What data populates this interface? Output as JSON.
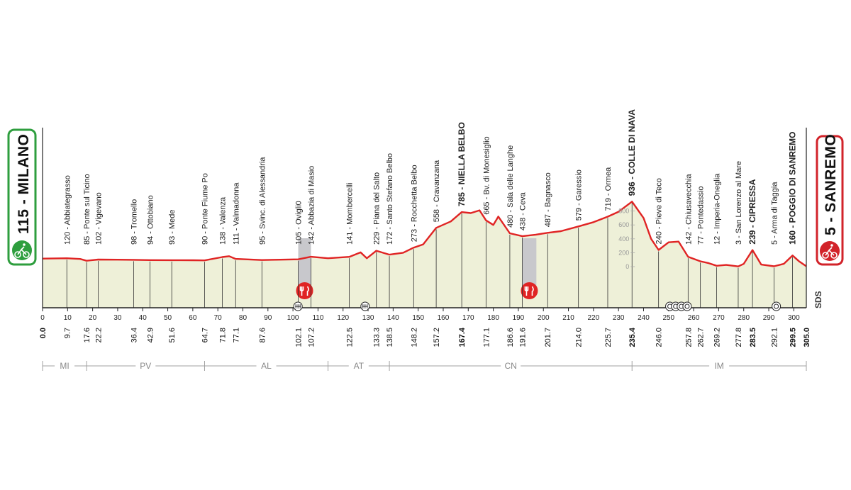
{
  "start": {
    "label": "115 - MILANO",
    "color": "#2e9e3e"
  },
  "finish": {
    "label": "5 - SANREMO",
    "color": "#d2232a"
  },
  "logo_text": "SDS",
  "colors": {
    "profile_line": "#e02424",
    "profile_fill": "#eef0d8",
    "feed_zone": "#c8c8cc",
    "axis": "#222222",
    "region_line": "#a0a0a0"
  },
  "altitude_labels": [
    "800",
    "600",
    "400",
    "200",
    "0"
  ],
  "feed_zone_icon": "fork-knife-icon",
  "chart_data": {
    "type": "area",
    "title": "",
    "xlabel": "",
    "ylabel": "",
    "xlim": [
      0,
      305
    ],
    "ylim": [
      0,
      936
    ],
    "x_ticks": [
      "0",
      "10",
      "20",
      "30",
      "40",
      "50",
      "60",
      "70",
      "80",
      "90",
      "100",
      "110",
      "120",
      "130",
      "140",
      "150",
      "160",
      "170",
      "180",
      "190",
      "200",
      "210",
      "220",
      "230",
      "240",
      "250",
      "260",
      "270",
      "280",
      "290",
      "300"
    ],
    "profile": [
      [
        0,
        115
      ],
      [
        9.7,
        120
      ],
      [
        15,
        110
      ],
      [
        17.6,
        85
      ],
      [
        22.2,
        102
      ],
      [
        30,
        100
      ],
      [
        36.4,
        98
      ],
      [
        42.9,
        94
      ],
      [
        51.6,
        93
      ],
      [
        60,
        92
      ],
      [
        64.7,
        90
      ],
      [
        71.8,
        138
      ],
      [
        74.5,
        150
      ],
      [
        77.1,
        111
      ],
      [
        87.6,
        95
      ],
      [
        95,
        100
      ],
      [
        102.1,
        105
      ],
      [
        107.2,
        142
      ],
      [
        114,
        120
      ],
      [
        122.5,
        141
      ],
      [
        127,
        205
      ],
      [
        129.5,
        120
      ],
      [
        133.3,
        229
      ],
      [
        138.5,
        172
      ],
      [
        144,
        200
      ],
      [
        148.2,
        273
      ],
      [
        152,
        320
      ],
      [
        157.2,
        558
      ],
      [
        163,
        650
      ],
      [
        167.4,
        785
      ],
      [
        171,
        770
      ],
      [
        174.5,
        810
      ],
      [
        177.1,
        665
      ],
      [
        180,
        600
      ],
      [
        182,
        720
      ],
      [
        186.6,
        480
      ],
      [
        191.6,
        438
      ],
      [
        197,
        460
      ],
      [
        201.7,
        487
      ],
      [
        207,
        510
      ],
      [
        214.0,
        579
      ],
      [
        220,
        640
      ],
      [
        225.7,
        719
      ],
      [
        230,
        790
      ],
      [
        235.4,
        936
      ],
      [
        240,
        700
      ],
      [
        243,
        400
      ],
      [
        246.0,
        240
      ],
      [
        250,
        350
      ],
      [
        254,
        360
      ],
      [
        257.8,
        142
      ],
      [
        262.7,
        77
      ],
      [
        266,
        50
      ],
      [
        269.2,
        12
      ],
      [
        273,
        25
      ],
      [
        277.8,
        3
      ],
      [
        280,
        40
      ],
      [
        283.5,
        239
      ],
      [
        287,
        30
      ],
      [
        292.1,
        5
      ],
      [
        296,
        40
      ],
      [
        299.5,
        160
      ],
      [
        302,
        80
      ],
      [
        305.0,
        5
      ]
    ],
    "places": [
      {
        "km": 9.7,
        "name": "120 - Abbiategrasso",
        "bold": false
      },
      {
        "km": 17.6,
        "name": "85 - Ponte sul Ticino",
        "bold": false
      },
      {
        "km": 22.2,
        "name": "102 - Vigevano",
        "bold": false
      },
      {
        "km": 36.4,
        "name": "98 - Tromello",
        "bold": false
      },
      {
        "km": 42.9,
        "name": "94 - Ottobiano",
        "bold": false
      },
      {
        "km": 51.6,
        "name": "93 - Mede",
        "bold": false
      },
      {
        "km": 64.7,
        "name": "90 - Ponte Fiume Po",
        "bold": false
      },
      {
        "km": 71.8,
        "name": "138 - Valenza",
        "bold": false
      },
      {
        "km": 77.1,
        "name": "111 - Valmadonna",
        "bold": false
      },
      {
        "km": 87.6,
        "name": "95 - Svinc. di Alessandria",
        "bold": false
      },
      {
        "km": 102.1,
        "name": "105 - Ovigli0",
        "bold": false
      },
      {
        "km": 107.2,
        "name": "142 - Abbazia di Masio",
        "bold": false
      },
      {
        "km": 122.5,
        "name": "141 - Mombercelli",
        "bold": false
      },
      {
        "km": 133.3,
        "name": "229 - Piana del Salto",
        "bold": false
      },
      {
        "km": 138.5,
        "name": "172 - Santo Stefano Belbo",
        "bold": false
      },
      {
        "km": 148.2,
        "name": "273 - Rocchetta Belbo",
        "bold": false
      },
      {
        "km": 157.2,
        "name": "558 - Cravanzana",
        "bold": false
      },
      {
        "km": 167.4,
        "name": "785 - NIELLA BELBO",
        "bold": true
      },
      {
        "km": 177.1,
        "name": "665 - Bv. di Monesiglio",
        "bold": false
      },
      {
        "km": 186.6,
        "name": "480 - Sala delle Langhe",
        "bold": false
      },
      {
        "km": 191.6,
        "name": "438 - Ceva",
        "bold": false
      },
      {
        "km": 201.7,
        "name": "487 - Bagnasco",
        "bold": false
      },
      {
        "km": 214.0,
        "name": "579 - Garessio",
        "bold": false
      },
      {
        "km": 225.7,
        "name": "719 - Ormea",
        "bold": false
      },
      {
        "km": 235.4,
        "name": "936 - COLLE DI NAVA",
        "bold": true
      },
      {
        "km": 246.0,
        "name": "240 - Pieve di Teco",
        "bold": false
      },
      {
        "km": 257.8,
        "name": "142 - Chiusavecchia",
        "bold": false
      },
      {
        "km": 262.7,
        "name": "77 - Pontedassio",
        "bold": false
      },
      {
        "km": 269.2,
        "name": "12 - Imperia-Oneglia",
        "bold": false
      },
      {
        "km": 277.8,
        "name": "3 - San Lorenzo al Mare",
        "bold": false
      },
      {
        "km": 283.5,
        "name": "239 - CIPRESSA",
        "bold": true
      },
      {
        "km": 292.1,
        "name": "5 - Arma di Taggia",
        "bold": false
      },
      {
        "km": 299.5,
        "name": "160 - POGGIO DI SANREMO",
        "bold": true
      }
    ],
    "distance_labels": [
      {
        "km": 0,
        "text": "0.0",
        "bold": true
      },
      {
        "km": 9.7,
        "text": "9.7",
        "bold": false
      },
      {
        "km": 17.6,
        "text": "17.6",
        "bold": false
      },
      {
        "km": 22.2,
        "text": "22.2",
        "bold": false
      },
      {
        "km": 36.4,
        "text": "36.4",
        "bold": false
      },
      {
        "km": 42.9,
        "text": "42.9",
        "bold": false
      },
      {
        "km": 51.6,
        "text": "51.6",
        "bold": false
      },
      {
        "km": 64.7,
        "text": "64.7",
        "bold": false
      },
      {
        "km": 71.8,
        "text": "71.8",
        "bold": false
      },
      {
        "km": 77.1,
        "text": "77.1",
        "bold": false
      },
      {
        "km": 87.6,
        "text": "87.6",
        "bold": false
      },
      {
        "km": 102.1,
        "text": "102.1",
        "bold": false
      },
      {
        "km": 107.2,
        "text": "107.2",
        "bold": false
      },
      {
        "km": 122.5,
        "text": "122.5",
        "bold": false
      },
      {
        "km": 133.3,
        "text": "133.3",
        "bold": false
      },
      {
        "km": 138.5,
        "text": "138.5",
        "bold": false
      },
      {
        "km": 148.2,
        "text": "148.2",
        "bold": false
      },
      {
        "km": 157.2,
        "text": "157.2",
        "bold": false
      },
      {
        "km": 167.4,
        "text": "167.4",
        "bold": true
      },
      {
        "km": 177.1,
        "text": "177.1",
        "bold": false
      },
      {
        "km": 186.6,
        "text": "186.6",
        "bold": false
      },
      {
        "km": 191.6,
        "text": "191.6",
        "bold": false
      },
      {
        "km": 201.7,
        "text": "201.7",
        "bold": false
      },
      {
        "km": 214.0,
        "text": "214.0",
        "bold": false
      },
      {
        "km": 225.7,
        "text": "225.7",
        "bold": false
      },
      {
        "km": 235.4,
        "text": "235.4",
        "bold": true
      },
      {
        "km": 246.0,
        "text": "246.0",
        "bold": false
      },
      {
        "km": 257.8,
        "text": "257.8",
        "bold": false
      },
      {
        "km": 262.7,
        "text": "262.7",
        "bold": false
      },
      {
        "km": 269.2,
        "text": "269.2",
        "bold": false
      },
      {
        "km": 277.8,
        "text": "277.8",
        "bold": false
      },
      {
        "km": 283.5,
        "text": "283.5",
        "bold": true
      },
      {
        "km": 292.1,
        "text": "292.1",
        "bold": false
      },
      {
        "km": 299.5,
        "text": "299.5",
        "bold": true
      },
      {
        "km": 305.0,
        "text": "305.0",
        "bold": true
      }
    ],
    "regions": [
      {
        "name": "MI",
        "from_km": 0,
        "to_km": 17.6
      },
      {
        "name": "PV",
        "from_km": 17.6,
        "to_km": 64.7
      },
      {
        "name": "AL",
        "from_km": 64.7,
        "to_km": 114
      },
      {
        "name": "AT",
        "from_km": 114,
        "to_km": 138.5
      },
      {
        "name": "CN",
        "from_km": 138.5,
        "to_km": 235.4
      },
      {
        "name": "IM",
        "from_km": 235.4,
        "to_km": 305
      }
    ],
    "feed_zones": [
      {
        "from_km": 102.1,
        "to_km": 107.2
      },
      {
        "from_km": 191.6,
        "to_km": 197.2
      }
    ],
    "markers": [
      {
        "km": 102,
        "type": "intermediate-sprint"
      },
      {
        "km": 128.8,
        "type": "intermediate-sprint"
      },
      {
        "km": 250.5,
        "type": "circle"
      },
      {
        "km": 252.8,
        "type": "circle"
      },
      {
        "km": 255.1,
        "type": "circle"
      },
      {
        "km": 257.4,
        "type": "circle"
      },
      {
        "km": 293,
        "type": "circle"
      }
    ]
  }
}
